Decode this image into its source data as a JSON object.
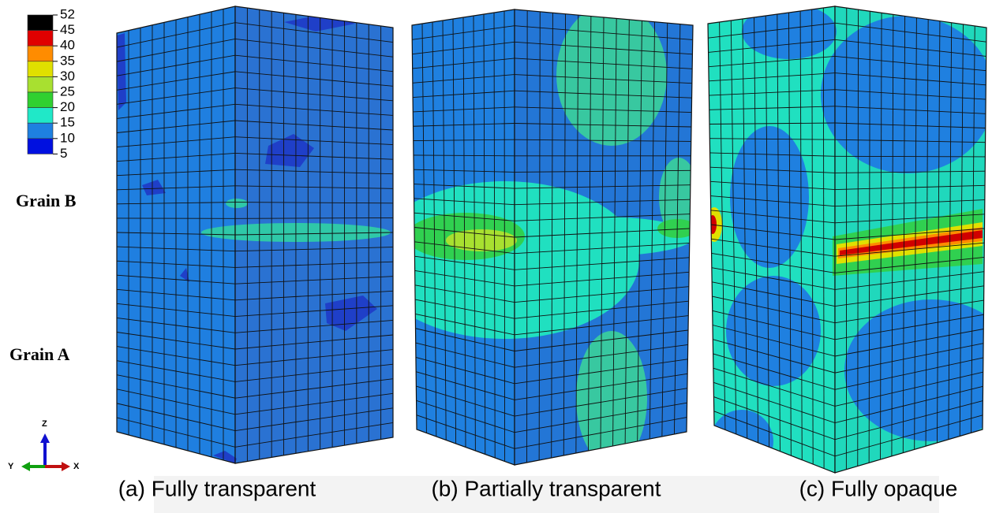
{
  "legend": {
    "labels": [
      "52",
      "45",
      "40",
      "35",
      "30",
      "25",
      "20",
      "15",
      "10",
      "5"
    ],
    "colors": [
      "#000000",
      "#e00000",
      "#ff8c00",
      "#e0e000",
      "#a8e030",
      "#30d030",
      "#20e8c8",
      "#1e80e0",
      "#0010e0"
    ]
  },
  "grain_labels": [
    "Grain B",
    "Grain A"
  ],
  "axes": {
    "z": "Z",
    "y": "Y",
    "x": "X"
  },
  "captions": [
    "(a) Fully transparent",
    "(b) Partially transparent",
    "(c) Fully opaque"
  ]
}
